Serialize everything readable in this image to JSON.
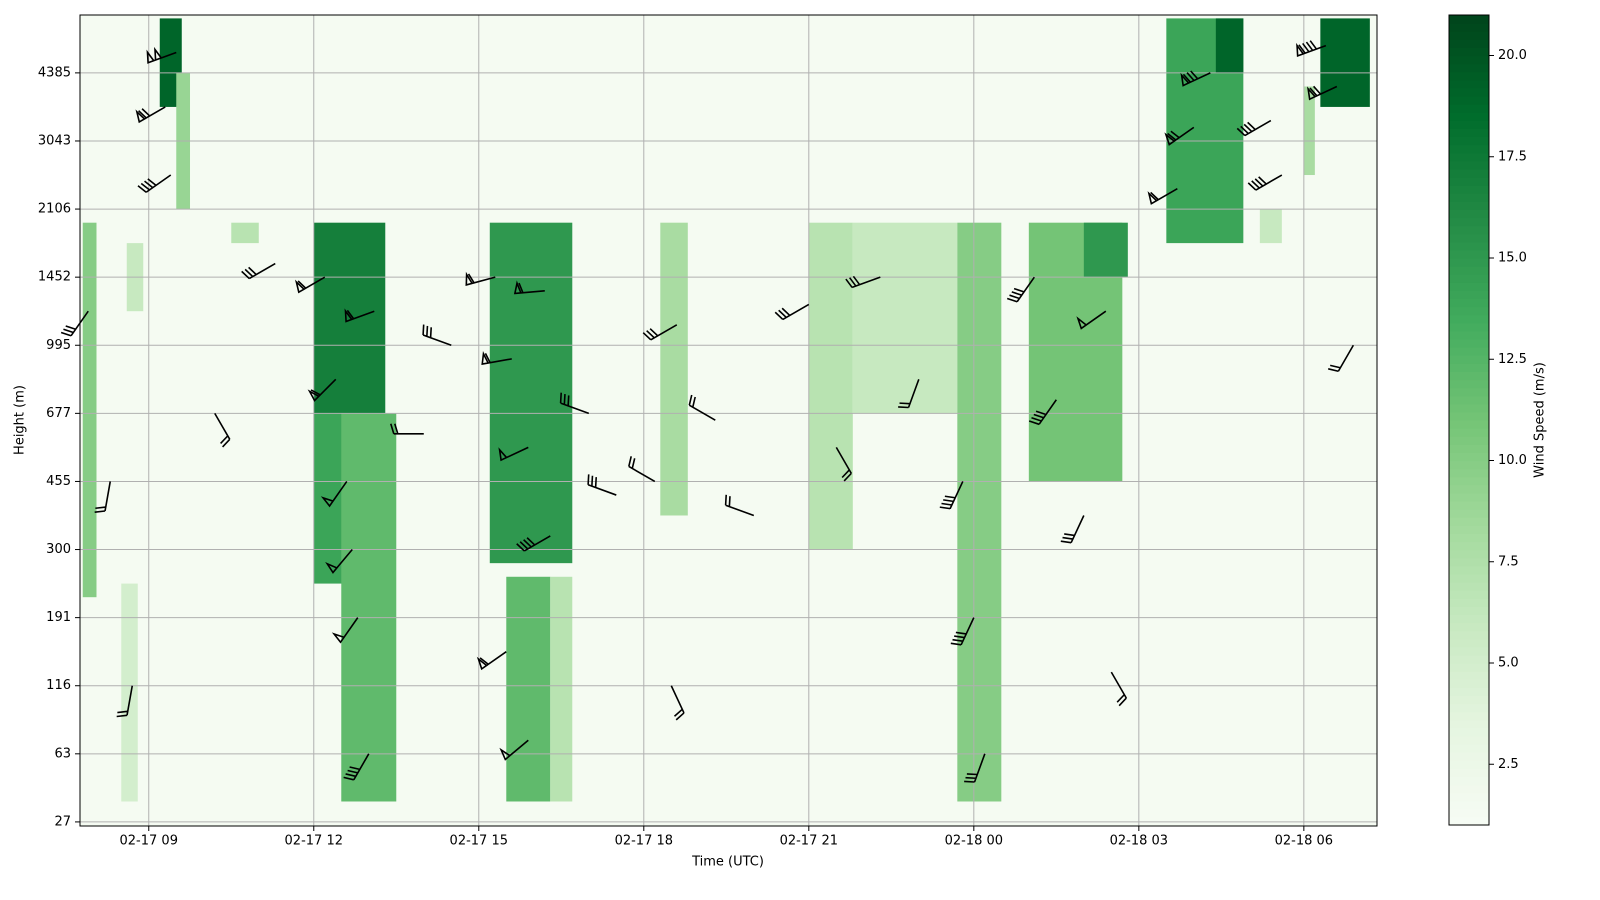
{
  "chart_data": {
    "type": "heatmap",
    "xlabel": "Time (UTC)",
    "ylabel": "Height (m)",
    "colorbar_label": "Wind Speed (m/s)",
    "colormap": [
      "#f7fcf5",
      "#e5f5e0",
      "#c7e9c0",
      "#a1d99b",
      "#74c476",
      "#41ab5d",
      "#238b45",
      "#006d2c",
      "#00441b"
    ],
    "clim": [
      1,
      21
    ],
    "cticks": [
      {
        "value": 2.5,
        "label": "2.5"
      },
      {
        "value": 5,
        "label": "5.0"
      },
      {
        "value": 7.5,
        "label": "7.5"
      },
      {
        "value": 10,
        "label": "10.0"
      },
      {
        "value": 12.5,
        "label": "12.5"
      },
      {
        "value": 15,
        "label": "15.0"
      },
      {
        "value": 17.5,
        "label": "17.5"
      },
      {
        "value": 20,
        "label": "20.0"
      }
    ],
    "xlim": [
      7.75,
      31.33
    ],
    "xticks": [
      {
        "value": 9,
        "label": "02-17 09"
      },
      {
        "value": 12,
        "label": "02-17 12"
      },
      {
        "value": 15,
        "label": "02-17 15"
      },
      {
        "value": 18,
        "label": "02-17 18"
      },
      {
        "value": 21,
        "label": "02-17 21"
      },
      {
        "value": 24,
        "label": "02-18 00"
      },
      {
        "value": 27,
        "label": "02-18 03"
      },
      {
        "value": 30,
        "label": "02-18 06"
      }
    ],
    "ylim": [
      -0.06,
      11.85
    ],
    "yticks": [
      {
        "value": 0,
        "label": "27"
      },
      {
        "value": 1,
        "label": "63"
      },
      {
        "value": 2,
        "label": "116"
      },
      {
        "value": 3,
        "label": "191"
      },
      {
        "value": 4,
        "label": "300"
      },
      {
        "value": 5,
        "label": "455"
      },
      {
        "value": 6,
        "label": "677"
      },
      {
        "value": 7,
        "label": "995"
      },
      {
        "value": 8,
        "label": "1452"
      },
      {
        "value": 9,
        "label": "2106"
      },
      {
        "value": 10,
        "label": "3043"
      },
      {
        "value": 11,
        "label": "4385"
      }
    ],
    "grid": true,
    "background": 1.3,
    "blocks": {
      "x0": [
        7.8,
        8.5,
        8.6,
        9.2,
        9.5,
        10.5,
        12.0,
        12.0,
        12.5,
        15.2,
        15.5,
        16.3,
        18.3,
        21.0,
        21.8,
        23.7,
        25.0,
        26.0,
        27.5,
        28.4,
        29.2,
        30.0,
        30.3
      ],
      "x1": [
        8.05,
        8.8,
        8.9,
        9.6,
        9.75,
        11.0,
        13.3,
        13.0,
        13.5,
        16.7,
        16.3,
        16.7,
        18.8,
        21.8,
        23.7,
        24.5,
        26.7,
        26.8,
        28.9,
        28.9,
        29.6,
        30.2,
        31.2
      ],
      "y0": [
        3.3,
        0.3,
        7.5,
        10.5,
        9.0,
        8.5,
        6.0,
        3.5,
        0.3,
        3.8,
        0.3,
        0.3,
        4.5,
        4.0,
        6.0,
        0.3,
        5.0,
        8.0,
        8.5,
        11.0,
        8.5,
        9.5,
        10.5
      ],
      "y1": [
        8.8,
        3.5,
        8.5,
        11.8,
        11.0,
        8.8,
        8.8,
        6.0,
        6.0,
        8.8,
        3.6,
        3.6,
        8.8,
        8.8,
        8.8,
        8.8,
        8.8,
        8.8,
        11.8,
        11.8,
        9.0,
        10.8,
        11.8
      ],
      "values": [
        10,
        5,
        6,
        19,
        9,
        7,
        17,
        14,
        12,
        15,
        12,
        7,
        8,
        7,
        6,
        10,
        11,
        15,
        14,
        19,
        6,
        8,
        19
      ]
    },
    "barbs": {
      "x": [
        7.9,
        8.3,
        8.7,
        9.3,
        9.4,
        9.5,
        10.2,
        11.3,
        12.2,
        12.4,
        12.6,
        12.8,
        13.0,
        12.7,
        13.1,
        14.0,
        14.5,
        15.3,
        15.6,
        15.9,
        16.2,
        15.5,
        15.9,
        16.3,
        17.0,
        17.5,
        18.2,
        18.6,
        18.5,
        19.3,
        20.0,
        21.0,
        21.5,
        22.3,
        23.0,
        23.8,
        24.0,
        24.2,
        25.1,
        25.5,
        26.0,
        26.4,
        26.5,
        27.7,
        28.0,
        28.3,
        29.4,
        29.6,
        30.4,
        30.6,
        30.9
      ],
      "y": [
        7.5,
        5.0,
        2.0,
        10.5,
        9.5,
        11.3,
        6.0,
        8.2,
        8.0,
        6.5,
        5.0,
        3.0,
        1.0,
        4.0,
        7.5,
        5.7,
        7.0,
        8.0,
        6.8,
        5.5,
        7.8,
        2.5,
        1.2,
        4.2,
        6.0,
        4.8,
        5.0,
        7.3,
        2.0,
        5.9,
        4.5,
        7.6,
        5.5,
        8.0,
        6.5,
        5.0,
        3.0,
        1.0,
        8.0,
        6.2,
        4.5,
        7.5,
        2.2,
        9.3,
        10.2,
        11.0,
        10.3,
        9.5,
        11.4,
        10.8,
        7.0
      ],
      "speed": [
        15,
        10,
        10,
        35,
        20,
        50,
        10,
        15,
        30,
        30,
        25,
        25,
        20,
        25,
        30,
        10,
        15,
        30,
        30,
        25,
        30,
        30,
        25,
        20,
        15,
        15,
        10,
        15,
        10,
        10,
        10,
        15,
        10,
        15,
        10,
        20,
        20,
        15,
        20,
        20,
        15,
        25,
        10,
        30,
        35,
        40,
        20,
        20,
        45,
        35,
        10
      ],
      "direction": [
        215,
        190,
        190,
        240,
        235,
        250,
        150,
        240,
        240,
        225,
        215,
        215,
        210,
        220,
        250,
        270,
        290,
        255,
        260,
        245,
        265,
        235,
        230,
        240,
        290,
        290,
        300,
        240,
        155,
        300,
        290,
        240,
        150,
        250,
        200,
        205,
        205,
        200,
        215,
        215,
        205,
        235,
        150,
        240,
        235,
        245,
        240,
        240,
        250,
        245,
        210
      ]
    }
  }
}
